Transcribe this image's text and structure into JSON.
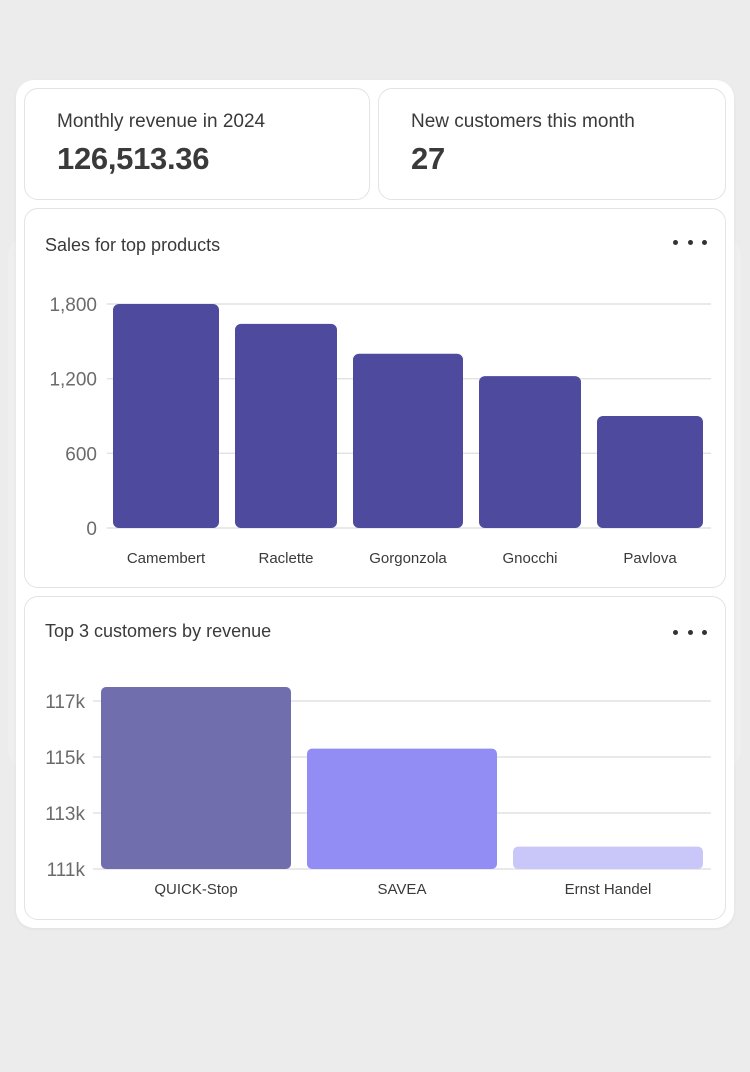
{
  "kpis": {
    "revenue": {
      "label": "Monthly revenue in 2024",
      "value": "126,513.36"
    },
    "customers": {
      "label": "New customers this month",
      "value": "27"
    }
  },
  "products_card": {
    "title": "Sales for top products",
    "more_icon": "more-horizontal-icon"
  },
  "customers_card": {
    "title": "Top 3 customers by revenue",
    "more_icon": "more-horizontal-icon"
  },
  "chart_data": [
    {
      "type": "bar",
      "title": "Sales for top products",
      "categories": [
        "Camembert",
        "Raclette",
        "Gorgonzola",
        "Gnocchi",
        "Pavlova"
      ],
      "values": [
        1800,
        1640,
        1400,
        1220,
        900
      ],
      "yticks": [
        0,
        600,
        1200,
        1800
      ],
      "ytick_labels": [
        "0",
        "600",
        "1,200",
        "1,800"
      ],
      "ylim": [
        0,
        1800
      ],
      "grid": true,
      "colors": [
        "#4e4b9e",
        "#4e4b9e",
        "#4e4b9e",
        "#4e4b9e",
        "#4e4b9e"
      ]
    },
    {
      "type": "bar",
      "title": "Top 3 customers by revenue",
      "categories": [
        "QUICK-Stop",
        "SAVEA",
        "Ernst Handel"
      ],
      "values": [
        117500,
        115300,
        111800
      ],
      "yticks": [
        111000,
        113000,
        115000,
        117000
      ],
      "ytick_labels": [
        "111k",
        "113k",
        "115k",
        "117k"
      ],
      "ylim": [
        111000,
        117000
      ],
      "grid": true,
      "colors": [
        "#716eae",
        "#928df4",
        "#c9c6fa"
      ]
    }
  ]
}
